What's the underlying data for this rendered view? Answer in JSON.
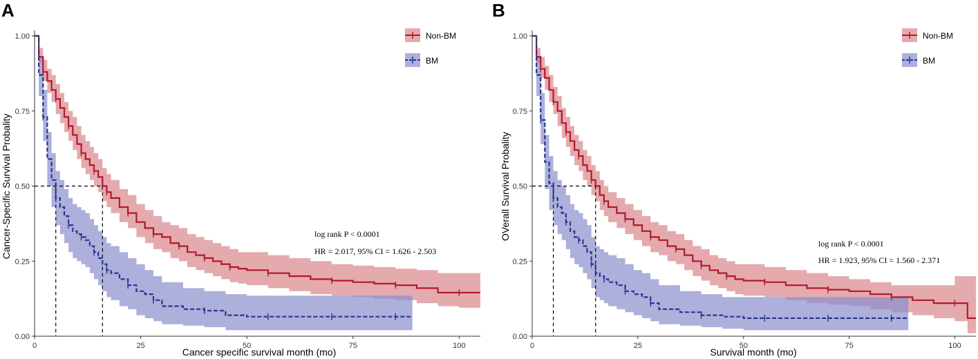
{
  "colors": {
    "non_bm": "#b2182b",
    "non_bm_band": "#d9868c",
    "bm": "#26358f",
    "bm_band": "#8a8fcc"
  },
  "chart_data": [
    {
      "type": "line",
      "panel": "A",
      "xlabel": "Cancer specific survival month (mo)",
      "ylabel": "Cancer-Specific Survival Probality",
      "xlim": [
        0,
        105
      ],
      "ylim": [
        0,
        1.0
      ],
      "xticks": [
        0,
        25,
        50,
        75,
        100
      ],
      "yticks": [
        "0.00",
        "0.25",
        "0.50",
        "0.75",
        "1.00"
      ],
      "legend": [
        "Non-BM",
        "BM"
      ],
      "legend_position": "top-right",
      "annotations": [
        "log rank P < 0.0001",
        "HR = 2.017, 95% CI = 1.626 - 2.503"
      ],
      "median_line_y": 0.5,
      "medians": {
        "BM": 5,
        "Non-BM": 16
      },
      "series": [
        {
          "name": "Non-BM",
          "x": [
            0,
            1,
            2,
            3,
            4,
            5,
            6,
            7,
            8,
            9,
            10,
            11,
            12,
            13,
            14,
            15,
            16,
            17,
            18,
            20,
            22,
            24,
            26,
            28,
            30,
            32,
            34,
            36,
            38,
            40,
            42,
            44,
            46,
            48,
            50,
            55,
            60,
            65,
            70,
            75,
            80,
            85,
            90,
            95,
            100,
            105
          ],
          "y": [
            1.0,
            0.93,
            0.88,
            0.85,
            0.82,
            0.79,
            0.76,
            0.73,
            0.7,
            0.67,
            0.64,
            0.61,
            0.59,
            0.57,
            0.55,
            0.53,
            0.5,
            0.48,
            0.46,
            0.43,
            0.41,
            0.38,
            0.36,
            0.34,
            0.33,
            0.31,
            0.3,
            0.28,
            0.27,
            0.26,
            0.25,
            0.24,
            0.23,
            0.225,
            0.22,
            0.21,
            0.2,
            0.19,
            0.185,
            0.18,
            0.175,
            0.17,
            0.16,
            0.145,
            0.145,
            0.145
          ],
          "ci_low": [
            1.0,
            0.91,
            0.85,
            0.81,
            0.78,
            0.74,
            0.71,
            0.68,
            0.65,
            0.62,
            0.59,
            0.56,
            0.54,
            0.52,
            0.5,
            0.48,
            0.45,
            0.43,
            0.41,
            0.38,
            0.36,
            0.33,
            0.31,
            0.29,
            0.28,
            0.26,
            0.25,
            0.23,
            0.22,
            0.21,
            0.2,
            0.19,
            0.18,
            0.175,
            0.17,
            0.16,
            0.15,
            0.14,
            0.135,
            0.13,
            0.125,
            0.12,
            0.11,
            0.1,
            0.095,
            0.095
          ],
          "ci_high": [
            1.0,
            0.96,
            0.92,
            0.89,
            0.87,
            0.84,
            0.81,
            0.78,
            0.75,
            0.73,
            0.7,
            0.67,
            0.65,
            0.63,
            0.61,
            0.59,
            0.56,
            0.54,
            0.52,
            0.49,
            0.47,
            0.44,
            0.42,
            0.4,
            0.38,
            0.37,
            0.36,
            0.34,
            0.33,
            0.32,
            0.31,
            0.3,
            0.29,
            0.28,
            0.28,
            0.27,
            0.26,
            0.25,
            0.24,
            0.235,
            0.23,
            0.225,
            0.22,
            0.21,
            0.21,
            0.21
          ]
        },
        {
          "name": "BM",
          "x": [
            0,
            1,
            2,
            3,
            4,
            5,
            6,
            7,
            8,
            9,
            10,
            11,
            12,
            13,
            14,
            15,
            16,
            17,
            18,
            20,
            22,
            24,
            26,
            28,
            30,
            35,
            40,
            45,
            50,
            55,
            60,
            65,
            70,
            75,
            80,
            85,
            89
          ],
          "y": [
            1.0,
            0.87,
            0.73,
            0.59,
            0.52,
            0.46,
            0.43,
            0.4,
            0.37,
            0.35,
            0.34,
            0.33,
            0.32,
            0.3,
            0.28,
            0.26,
            0.24,
            0.22,
            0.21,
            0.19,
            0.17,
            0.15,
            0.14,
            0.12,
            0.1,
            0.09,
            0.085,
            0.07,
            0.065,
            0.065,
            0.065,
            0.065,
            0.065,
            0.065,
            0.065,
            0.065,
            0.065
          ],
          "ci_low": [
            1.0,
            0.8,
            0.65,
            0.5,
            0.43,
            0.37,
            0.34,
            0.31,
            0.28,
            0.26,
            0.25,
            0.24,
            0.23,
            0.21,
            0.19,
            0.17,
            0.15,
            0.13,
            0.12,
            0.1,
            0.09,
            0.07,
            0.06,
            0.05,
            0.04,
            0.035,
            0.03,
            0.02,
            0.02,
            0.02,
            0.02,
            0.02,
            0.02,
            0.02,
            0.02,
            0.02,
            0.02
          ],
          "ci_high": [
            1.0,
            0.93,
            0.82,
            0.68,
            0.61,
            0.55,
            0.52,
            0.49,
            0.46,
            0.44,
            0.43,
            0.42,
            0.41,
            0.39,
            0.37,
            0.35,
            0.33,
            0.31,
            0.3,
            0.28,
            0.26,
            0.24,
            0.22,
            0.2,
            0.18,
            0.16,
            0.15,
            0.14,
            0.135,
            0.135,
            0.135,
            0.135,
            0.135,
            0.135,
            0.135,
            0.135,
            0.135
          ]
        }
      ]
    },
    {
      "type": "line",
      "panel": "B",
      "xlabel": "Survival month (mo)",
      "ylabel": "OVerall Survival Probality",
      "xlim": [
        0,
        105
      ],
      "ylim": [
        0,
        1.0
      ],
      "xticks": [
        0,
        25,
        50,
        75,
        100
      ],
      "yticks": [
        "0.00",
        "0.25",
        "0.50",
        "0.75",
        "1.00"
      ],
      "legend": [
        "Non-BM",
        "BM"
      ],
      "legend_position": "top-right",
      "annotations": [
        "log rank P < 0.0001",
        "HR = 1.923, 95% CI = 1.560 - 2.371"
      ],
      "median_line_y": 0.5,
      "medians": {
        "BM": 5,
        "Non-BM": 15
      },
      "series": [
        {
          "name": "Non-BM",
          "x": [
            0,
            1,
            2,
            3,
            4,
            5,
            6,
            7,
            8,
            9,
            10,
            11,
            12,
            13,
            14,
            15,
            16,
            17,
            18,
            20,
            22,
            24,
            26,
            28,
            30,
            32,
            34,
            36,
            38,
            40,
            42,
            44,
            46,
            48,
            50,
            55,
            60,
            65,
            70,
            75,
            80,
            85,
            90,
            95,
            100,
            103,
            105
          ],
          "y": [
            1.0,
            0.93,
            0.89,
            0.86,
            0.82,
            0.78,
            0.75,
            0.71,
            0.68,
            0.65,
            0.62,
            0.6,
            0.57,
            0.55,
            0.52,
            0.5,
            0.47,
            0.45,
            0.43,
            0.41,
            0.39,
            0.37,
            0.35,
            0.33,
            0.32,
            0.3,
            0.29,
            0.27,
            0.25,
            0.235,
            0.22,
            0.21,
            0.2,
            0.19,
            0.185,
            0.18,
            0.17,
            0.16,
            0.155,
            0.15,
            0.14,
            0.13,
            0.12,
            0.11,
            0.11,
            0.06,
            0.06
          ],
          "ci_low": [
            1.0,
            0.91,
            0.86,
            0.82,
            0.78,
            0.74,
            0.7,
            0.66,
            0.63,
            0.6,
            0.57,
            0.55,
            0.52,
            0.5,
            0.47,
            0.45,
            0.42,
            0.4,
            0.38,
            0.36,
            0.34,
            0.32,
            0.3,
            0.28,
            0.27,
            0.25,
            0.24,
            0.22,
            0.2,
            0.185,
            0.17,
            0.16,
            0.15,
            0.14,
            0.135,
            0.13,
            0.12,
            0.11,
            0.105,
            0.1,
            0.09,
            0.08,
            0.07,
            0.06,
            0.05,
            0.01,
            0.01
          ],
          "ci_high": [
            1.0,
            0.96,
            0.93,
            0.9,
            0.87,
            0.83,
            0.8,
            0.76,
            0.73,
            0.7,
            0.67,
            0.65,
            0.62,
            0.6,
            0.57,
            0.55,
            0.52,
            0.5,
            0.48,
            0.46,
            0.44,
            0.42,
            0.4,
            0.38,
            0.37,
            0.35,
            0.34,
            0.32,
            0.3,
            0.29,
            0.27,
            0.26,
            0.25,
            0.24,
            0.24,
            0.23,
            0.22,
            0.21,
            0.2,
            0.19,
            0.18,
            0.17,
            0.17,
            0.17,
            0.2,
            0.2,
            0.2
          ]
        },
        {
          "name": "BM",
          "x": [
            0,
            1,
            2,
            3,
            4,
            5,
            6,
            7,
            8,
            9,
            10,
            11,
            12,
            13,
            14,
            15,
            16,
            17,
            18,
            20,
            22,
            24,
            26,
            28,
            30,
            35,
            40,
            45,
            50,
            55,
            60,
            65,
            70,
            75,
            80,
            85,
            89
          ],
          "y": [
            1.0,
            0.87,
            0.72,
            0.58,
            0.51,
            0.46,
            0.43,
            0.41,
            0.38,
            0.35,
            0.33,
            0.32,
            0.3,
            0.28,
            0.24,
            0.21,
            0.2,
            0.19,
            0.18,
            0.17,
            0.15,
            0.14,
            0.13,
            0.11,
            0.09,
            0.08,
            0.07,
            0.065,
            0.06,
            0.06,
            0.06,
            0.06,
            0.06,
            0.06,
            0.06,
            0.06,
            0.06
          ],
          "ci_low": [
            1.0,
            0.8,
            0.64,
            0.49,
            0.42,
            0.37,
            0.34,
            0.32,
            0.29,
            0.26,
            0.24,
            0.23,
            0.21,
            0.19,
            0.16,
            0.13,
            0.12,
            0.11,
            0.1,
            0.09,
            0.08,
            0.07,
            0.06,
            0.05,
            0.04,
            0.035,
            0.03,
            0.025,
            0.02,
            0.02,
            0.02,
            0.02,
            0.02,
            0.02,
            0.02,
            0.02,
            0.02
          ],
          "ci_high": [
            1.0,
            0.93,
            0.81,
            0.67,
            0.6,
            0.55,
            0.52,
            0.5,
            0.47,
            0.44,
            0.42,
            0.41,
            0.39,
            0.37,
            0.33,
            0.3,
            0.29,
            0.28,
            0.27,
            0.26,
            0.24,
            0.22,
            0.21,
            0.19,
            0.17,
            0.15,
            0.14,
            0.13,
            0.13,
            0.13,
            0.13,
            0.13,
            0.13,
            0.13,
            0.13,
            0.13,
            0.13
          ]
        }
      ]
    }
  ]
}
